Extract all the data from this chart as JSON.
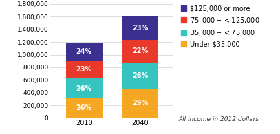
{
  "categories": [
    "2010",
    "2040"
  ],
  "segments": [
    {
      "label": "Under $35,000",
      "color": "#F5A623",
      "values": [
        312000,
        464000
      ],
      "percents": [
        "26%",
        "29%"
      ]
    },
    {
      "label": "$35,000 -< $75,000",
      "color": "#35C4C0",
      "values": [
        312000,
        416000
      ],
      "percents": [
        "26%",
        "26%"
      ]
    },
    {
      "label": "$75,000 -< $125,000",
      "color": "#E8392A",
      "values": [
        276000,
        352000
      ],
      "percents": [
        "23%",
        "22%"
      ]
    },
    {
      "label": "$125,000 or more",
      "color": "#3B2F8F",
      "values": [
        288000,
        368000
      ],
      "percents": [
        "24%",
        "23%"
      ]
    }
  ],
  "ylim": [
    0,
    1800000
  ],
  "yticks": [
    0,
    200000,
    400000,
    600000,
    800000,
    1000000,
    1200000,
    1400000,
    1600000,
    1800000
  ],
  "ytick_labels": [
    "0",
    "200,000",
    "400,000",
    "600,000",
    "800,000",
    "1,000,000",
    "1,200,000",
    "1,400,000",
    "1,600,000",
    "1,800,000"
  ],
  "bar_width": 0.65,
  "legend_note": "All income in 2012 dollars",
  "background_color": "#ffffff",
  "text_color": "#ffffff",
  "label_fontsize": 7.0,
  "legend_fontsize": 7.0,
  "tick_fontsize": 6.5
}
